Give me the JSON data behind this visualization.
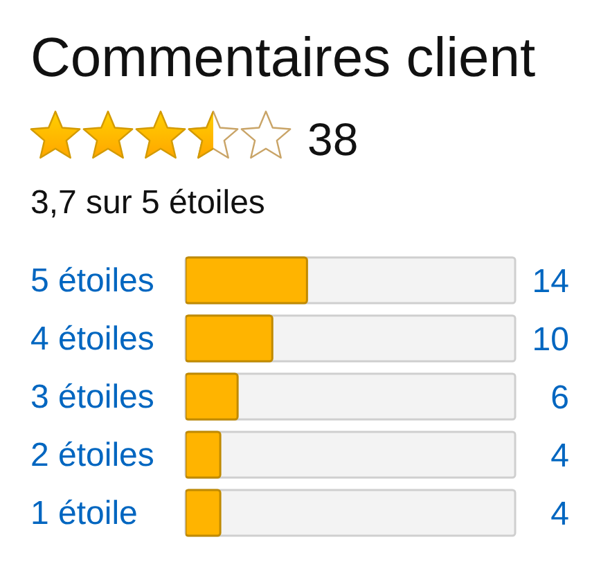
{
  "chart_data": {
    "type": "bar",
    "orientation": "horizontal",
    "title": "Commentaires client",
    "annotations": [
      "38",
      "3,7 sur 5 étoiles"
    ],
    "categories": [
      "5 étoiles",
      "4 étoiles",
      "3 étoiles",
      "2 étoiles",
      "1 étoile"
    ],
    "values": [
      14,
      10,
      6,
      4,
      4
    ],
    "color": "#ffb400",
    "xlim": [
      0,
      38
    ],
    "data_labels": true,
    "tick_labels": "y"
  }
}
